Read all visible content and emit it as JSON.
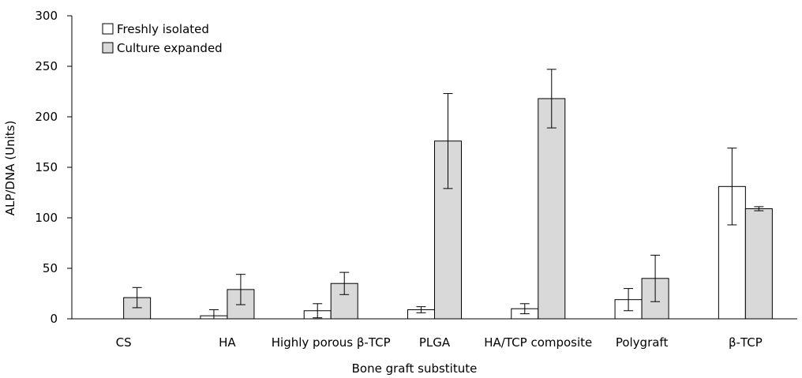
{
  "chart_data": {
    "type": "bar",
    "title": "",
    "xlabel": "Bone graft substitute",
    "ylabel": "ALP/DNA (Units)",
    "ylim": [
      0,
      300
    ],
    "yticks": [
      0,
      50,
      100,
      150,
      200,
      250,
      300
    ],
    "grid": false,
    "legend_position": "top-left",
    "categories": [
      "CS",
      "HA",
      "Highly porous β-TCP",
      "PLGA",
      "HA/TCP composite",
      "Polygraft",
      "β-TCP"
    ],
    "series": [
      {
        "name": "Freshly isolated",
        "color": "#ffffff",
        "values": [
          0,
          3,
          8,
          9,
          10,
          19,
          131
        ],
        "error": [
          0,
          6,
          7,
          3,
          5,
          11,
          38
        ]
      },
      {
        "name": "Culture expanded",
        "color": "#d9d9d9",
        "values": [
          21,
          29,
          35,
          176,
          218,
          40,
          109
        ],
        "error": [
          10,
          15,
          11,
          47,
          29,
          23,
          2
        ]
      }
    ]
  }
}
